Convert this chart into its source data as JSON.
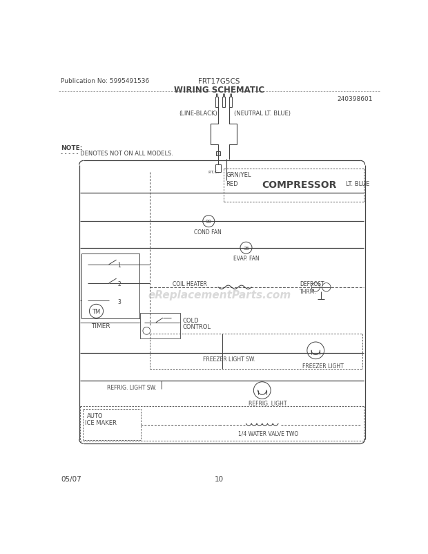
{
  "title": "WIRING SCHEMATIC",
  "pub_no": "Publication No: 5995491536",
  "model": "FRT17G5CS",
  "part_no": "240398601",
  "page": "10",
  "date": "05/07",
  "bg_color": "#ffffff",
  "line_color": "#444444",
  "text_color": "#444444"
}
